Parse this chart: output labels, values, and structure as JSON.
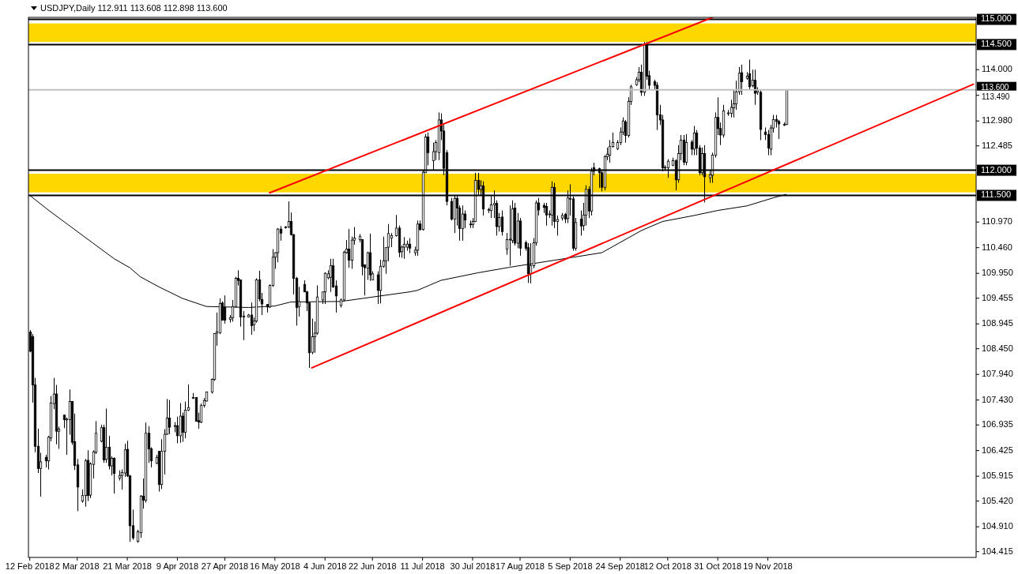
{
  "chart_data": {
    "type": "candlestick",
    "title": "USDJPY,Daily 112.911 113.608 112.898 113.600",
    "color": "#000000",
    "x": [
      "2018-02-12",
      "2018-02-13",
      "2018-02-14",
      "2018-02-15",
      "2018-02-16",
      "2018-02-18",
      "2018-02-19",
      "2018-02-20",
      "2018-02-21",
      "2018-02-22",
      "2018-02-23",
      "2018-02-25",
      "2018-02-26",
      "2018-02-27",
      "2018-02-28",
      "2018-03-01",
      "2018-03-02",
      "2018-03-04",
      "2018-03-05",
      "2018-03-06",
      "2018-03-07",
      "2018-03-08",
      "2018-03-09",
      "2018-03-11",
      "2018-03-12",
      "2018-03-13",
      "2018-03-14",
      "2018-03-15",
      "2018-03-16",
      "2018-03-18",
      "2018-03-19",
      "2018-03-20",
      "2018-03-21",
      "2018-03-22",
      "2018-03-23",
      "2018-03-25",
      "2018-03-26",
      "2018-03-27",
      "2018-03-28",
      "2018-03-29",
      "2018-03-30",
      "2018-04-01",
      "2018-04-02",
      "2018-04-03",
      "2018-04-04",
      "2018-04-05",
      "2018-04-06",
      "2018-04-08",
      "2018-04-09",
      "2018-04-10",
      "2018-04-11",
      "2018-04-12",
      "2018-04-13",
      "2018-04-15",
      "2018-04-16",
      "2018-04-17",
      "2018-04-18",
      "2018-04-19",
      "2018-04-20",
      "2018-04-22",
      "2018-04-23",
      "2018-04-24",
      "2018-04-25",
      "2018-04-26",
      "2018-04-27",
      "2018-04-29",
      "2018-04-30",
      "2018-05-01",
      "2018-05-02",
      "2018-05-03",
      "2018-05-04",
      "2018-05-06",
      "2018-05-07",
      "2018-05-08",
      "2018-05-09",
      "2018-05-10",
      "2018-05-11",
      "2018-05-13",
      "2018-05-14",
      "2018-05-15",
      "2018-05-16",
      "2018-05-17",
      "2018-05-18",
      "2018-05-20",
      "2018-05-21",
      "2018-05-22",
      "2018-05-23",
      "2018-05-24",
      "2018-05-25",
      "2018-05-27",
      "2018-05-28",
      "2018-05-29",
      "2018-05-30",
      "2018-05-31",
      "2018-06-01",
      "2018-06-03",
      "2018-06-04",
      "2018-06-05",
      "2018-06-06",
      "2018-06-07",
      "2018-06-08",
      "2018-06-10",
      "2018-06-11",
      "2018-06-12",
      "2018-06-13",
      "2018-06-14",
      "2018-06-15",
      "2018-06-17",
      "2018-06-18",
      "2018-06-19",
      "2018-06-20",
      "2018-06-21",
      "2018-06-22",
      "2018-06-24",
      "2018-06-25",
      "2018-06-26",
      "2018-06-27",
      "2018-06-28",
      "2018-06-29",
      "2018-07-01",
      "2018-07-02",
      "2018-07-03",
      "2018-07-04",
      "2018-07-05",
      "2018-07-06",
      "2018-07-08",
      "2018-07-09",
      "2018-07-10",
      "2018-07-11",
      "2018-07-12",
      "2018-07-13",
      "2018-07-15",
      "2018-07-16",
      "2018-07-17",
      "2018-07-18",
      "2018-07-19",
      "2018-07-20",
      "2018-07-22",
      "2018-07-23",
      "2018-07-24",
      "2018-07-25",
      "2018-07-26",
      "2018-07-27",
      "2018-07-29",
      "2018-07-30",
      "2018-07-31",
      "2018-08-01",
      "2018-08-02",
      "2018-08-03",
      "2018-08-05",
      "2018-08-06",
      "2018-08-07",
      "2018-08-08",
      "2018-08-09",
      "2018-08-10",
      "2018-08-12",
      "2018-08-13",
      "2018-08-14",
      "2018-08-15",
      "2018-08-16",
      "2018-08-17",
      "2018-08-19",
      "2018-08-20",
      "2018-08-21",
      "2018-08-22",
      "2018-08-23",
      "2018-08-24",
      "2018-08-26",
      "2018-08-27",
      "2018-08-28",
      "2018-08-29",
      "2018-08-30",
      "2018-08-31",
      "2018-09-02",
      "2018-09-03",
      "2018-09-04",
      "2018-09-05",
      "2018-09-06",
      "2018-09-07",
      "2018-09-09",
      "2018-09-10",
      "2018-09-11",
      "2018-09-12",
      "2018-09-13",
      "2018-09-14",
      "2018-09-16",
      "2018-09-17",
      "2018-09-18",
      "2018-09-19",
      "2018-09-20",
      "2018-09-21",
      "2018-09-23",
      "2018-09-24",
      "2018-09-25",
      "2018-09-26",
      "2018-09-27",
      "2018-09-28",
      "2018-09-30",
      "2018-10-01",
      "2018-10-02",
      "2018-10-03",
      "2018-10-04",
      "2018-10-05",
      "2018-10-07",
      "2018-10-08",
      "2018-10-09",
      "2018-10-10",
      "2018-10-11",
      "2018-10-12",
      "2018-10-14",
      "2018-10-15",
      "2018-10-16",
      "2018-10-17",
      "2018-10-18",
      "2018-10-19",
      "2018-10-21",
      "2018-10-22",
      "2018-10-23",
      "2018-10-24",
      "2018-10-25",
      "2018-10-26",
      "2018-10-28",
      "2018-10-29",
      "2018-10-30",
      "2018-10-31",
      "2018-11-01",
      "2018-11-02",
      "2018-11-04",
      "2018-11-05",
      "2018-11-06",
      "2018-11-07",
      "2018-11-08",
      "2018-11-09",
      "2018-11-11",
      "2018-11-12",
      "2018-11-13",
      "2018-11-14",
      "2018-11-15",
      "2018-11-16",
      "2018-11-18",
      "2018-11-19",
      "2018-11-20",
      "2018-11-21",
      "2018-11-22",
      "2018-11-23",
      "2018-11-25",
      "2018-11-26"
    ],
    "ohlc": [
      [
        108.78,
        108.82,
        108.38,
        108.4
      ],
      [
        108.69,
        108.74,
        107.38,
        107.73
      ],
      [
        107.73,
        107.87,
        106.39,
        106.51
      ],
      [
        106.51,
        106.86,
        105.98,
        106.07
      ],
      [
        106.07,
        106.38,
        105.51,
        106.2
      ],
      [
        106.29,
        106.34,
        106.09,
        106.22
      ],
      [
        106.22,
        106.72,
        106.05,
        106.69
      ],
      [
        106.68,
        107.51,
        106.61,
        107.37
      ],
      [
        107.36,
        107.87,
        107.25,
        107.55
      ],
      [
        107.55,
        107.73,
        106.55,
        106.81
      ],
      [
        106.81,
        106.9,
        106.46,
        106.85
      ],
      [
        107.13,
        107.14,
        106.87,
        107.04
      ],
      [
        107.05,
        107.08,
        106.34,
        107.05
      ],
      [
        107.04,
        107.64,
        106.74,
        107.4
      ],
      [
        107.4,
        107.41,
        106.54,
        106.59
      ],
      [
        106.6,
        107.16,
        106.04,
        106.13
      ],
      [
        106.14,
        106.26,
        105.22,
        105.7
      ],
      [
        105.42,
        105.65,
        105.39,
        105.53
      ],
      [
        105.53,
        106.26,
        105.31,
        106.22
      ],
      [
        106.23,
        106.43,
        105.42,
        105.53
      ],
      [
        105.54,
        106.19,
        105.48,
        106.16
      ],
      [
        106.15,
        106.43,
        105.87,
        106.4
      ],
      [
        106.39,
        107.01,
        106.36,
        106.77
      ],
      [
        106.61,
        106.94,
        106.59,
        106.88
      ],
      [
        106.88,
        106.94,
        106.18,
        106.24
      ],
      [
        106.25,
        107.26,
        106.18,
        106.49
      ],
      [
        106.49,
        106.72,
        106.05,
        106.12
      ],
      [
        106.12,
        106.31,
        105.93,
        106.27
      ],
      [
        106.27,
        106.29,
        105.57,
        105.97
      ],
      [
        105.88,
        106.03,
        105.83,
        105.93
      ],
      [
        105.93,
        106.05,
        105.65,
        105.99
      ],
      [
        105.98,
        106.56,
        105.9,
        106.44
      ],
      [
        106.45,
        106.62,
        105.9,
        105.92
      ],
      [
        105.92,
        105.94,
        104.61,
        104.93
      ],
      [
        104.93,
        105.25,
        104.65,
        104.69
      ],
      [
        104.62,
        104.85,
        104.59,
        104.81
      ],
      [
        104.79,
        105.54,
        104.69,
        105.52
      ],
      [
        105.52,
        105.87,
        105.27,
        105.44
      ],
      [
        105.44,
        106.98,
        105.39,
        106.77
      ],
      [
        106.77,
        106.91,
        106.18,
        106.46
      ],
      [
        106.46,
        106.49,
        106.09,
        106.22
      ],
      [
        106.17,
        106.34,
        106.16,
        106.29
      ],
      [
        106.41,
        106.41,
        105.61,
        105.75
      ],
      [
        105.75,
        106.65,
        105.66,
        106.41
      ],
      [
        106.41,
        106.85,
        105.95,
        106.75
      ],
      [
        106.75,
        107.45,
        106.74,
        107.07
      ],
      [
        107.07,
        107.43,
        106.75,
        106.89
      ],
      [
        106.92,
        106.99,
        106.79,
        106.92
      ],
      [
        106.92,
        107.1,
        106.57,
        106.72
      ],
      [
        106.72,
        107.37,
        106.58,
        107.11
      ],
      [
        107.11,
        107.18,
        106.6,
        106.79
      ],
      [
        106.79,
        107.4,
        106.67,
        107.23
      ],
      [
        107.23,
        107.74,
        107.21,
        107.28
      ],
      [
        107.48,
        107.57,
        107.45,
        107.48
      ],
      [
        107.48,
        107.49,
        107.0,
        107.01
      ],
      [
        107.02,
        107.18,
        106.86,
        106.99
      ],
      [
        106.99,
        107.36,
        106.97,
        107.32
      ],
      [
        107.32,
        107.47,
        107.28,
        107.42
      ],
      [
        107.41,
        107.6,
        107.4,
        107.59
      ],
      [
        107.59,
        107.86,
        107.56,
        107.84
      ],
      [
        107.84,
        108.76,
        107.81,
        108.75
      ],
      [
        108.76,
        109.17,
        108.51,
        108.79
      ],
      [
        108.77,
        109.45,
        108.74,
        109.35
      ],
      [
        109.36,
        109.39,
        109.02,
        109.02
      ],
      [
        109.27,
        109.51,
        108.95,
        109.02
      ],
      [
        109.03,
        109.12,
        108.97,
        109.07
      ],
      [
        109.07,
        109.42,
        108.99,
        109.29
      ],
      [
        109.29,
        109.88,
        109.27,
        109.85
      ],
      [
        109.85,
        110.01,
        109.71,
        109.81
      ],
      [
        109.82,
        109.82,
        108.89,
        109.08
      ],
      [
        109.08,
        109.2,
        108.62,
        109.1
      ],
      [
        109.08,
        109.14,
        109.07,
        109.12
      ],
      [
        109.12,
        109.37,
        108.73,
        108.91
      ],
      [
        108.93,
        109.07,
        108.8,
        109.0
      ],
      [
        109.0,
        109.85,
        108.97,
        109.82
      ],
      [
        109.82,
        110.0,
        109.39,
        109.44
      ],
      [
        109.43,
        109.56,
        109.12,
        109.34
      ],
      [
        109.33,
        109.34,
        109.17,
        109.28
      ],
      [
        109.28,
        109.73,
        109.26,
        109.71
      ],
      [
        109.71,
        110.43,
        109.68,
        110.27
      ],
      [
        110.27,
        110.37,
        110.04,
        110.36
      ],
      [
        110.36,
        110.85,
        110.17,
        110.83
      ],
      [
        110.83,
        110.89,
        110.6,
        110.75
      ],
      [
        110.87,
        110.89,
        110.84,
        110.87
      ],
      [
        110.87,
        111.38,
        110.85,
        110.98
      ],
      [
        110.98,
        111.16,
        110.7,
        110.72
      ],
      [
        110.72,
        110.73,
        109.53,
        109.85
      ],
      [
        109.85,
        109.88,
        108.91,
        109.27
      ],
      [
        109.29,
        109.68,
        109.09,
        109.39
      ],
      [
        109.73,
        109.81,
        109.58,
        109.58
      ],
      [
        109.58,
        109.6,
        109.2,
        109.36
      ],
      [
        109.36,
        109.37,
        108.07,
        108.37
      ],
      [
        108.38,
        109.05,
        108.34,
        108.69
      ],
      [
        108.69,
        108.99,
        108.37,
        108.76
      ],
      [
        108.76,
        109.71,
        108.73,
        109.48
      ],
      [
        109.42,
        109.58,
        109.34,
        109.58
      ],
      [
        109.58,
        109.97,
        109.34,
        109.95
      ],
      [
        109.86,
        110.01,
        109.83,
        109.94
      ],
      [
        109.87,
        110.24,
        109.58,
        110.1
      ],
      [
        110.1,
        110.24,
        109.66,
        109.68
      ],
      [
        109.7,
        109.81,
        109.17,
        109.5
      ],
      [
        109.31,
        109.45,
        109.27,
        109.42
      ],
      [
        109.42,
        110.4,
        109.4,
        110.37
      ],
      [
        110.36,
        110.61,
        110.34,
        110.43
      ],
      [
        110.43,
        110.83,
        110.06,
        110.21
      ],
      [
        110.21,
        110.68,
        110.04,
        110.61
      ],
      [
        110.61,
        110.87,
        110.52,
        110.65
      ],
      [
        110.62,
        110.73,
        110.57,
        110.68
      ],
      [
        110.62,
        110.63,
        109.91,
        110.09
      ],
      [
        110.12,
        110.12,
        109.51,
        110.06
      ],
      [
        110.05,
        110.38,
        109.82,
        110.36
      ],
      [
        110.36,
        110.74,
        109.8,
        109.92
      ],
      [
        109.82,
        109.99,
        109.81,
        109.94
      ],
      [
        109.92,
        109.99,
        109.34,
        109.61
      ],
      [
        109.61,
        110.22,
        109.35,
        110.09
      ],
      [
        110.09,
        110.68,
        110.06,
        110.2
      ],
      [
        110.2,
        110.47,
        109.94,
        110.46
      ],
      [
        110.47,
        110.93,
        110.19,
        110.74
      ],
      [
        110.65,
        110.75,
        110.47,
        110.7
      ],
      [
        110.7,
        111.11,
        110.68,
        110.85
      ],
      [
        110.85,
        110.9,
        110.27,
        110.37
      ],
      [
        110.38,
        110.5,
        110.26,
        110.47
      ],
      [
        110.47,
        110.67,
        110.24,
        110.53
      ],
      [
        110.47,
        110.6,
        110.4,
        110.53
      ],
      [
        110.53,
        110.65,
        110.35,
        110.45
      ],
      [
        110.36,
        110.48,
        110.3,
        110.41
      ],
      [
        110.41,
        111.0,
        110.3,
        110.93
      ],
      [
        110.93,
        111.0,
        110.8,
        110.82
      ],
      [
        110.82,
        112.0,
        110.8,
        111.96
      ],
      [
        111.95,
        112.72,
        111.95,
        112.66
      ],
      [
        112.66,
        112.75,
        112.1,
        112.35
      ],
      [
        112.19,
        112.55,
        112.0,
        112.37
      ],
      [
        112.37,
        112.6,
        112.2,
        112.55
      ],
      [
        112.35,
        113.15,
        112.2,
        113.0
      ],
      [
        113.0,
        113.13,
        112.6,
        112.78
      ],
      [
        112.78,
        112.9,
        111.9,
        112.04
      ],
      [
        112.35,
        112.4,
        111.3,
        111.38
      ],
      [
        111.38,
        111.45,
        111.0,
        111.03
      ],
      [
        111.03,
        111.5,
        110.75,
        111.44
      ],
      [
        111.44,
        111.5,
        110.9,
        111.25
      ],
      [
        111.25,
        111.3,
        110.6,
        110.84
      ],
      [
        110.84,
        111.3,
        110.6,
        111.13
      ],
      [
        111.13,
        111.2,
        110.85,
        111.01
      ],
      [
        110.92,
        111.0,
        110.85,
        110.93
      ],
      [
        110.92,
        111.05,
        110.85,
        110.98
      ],
      [
        110.98,
        111.95,
        110.97,
        111.8
      ],
      [
        111.8,
        111.95,
        111.5,
        111.62
      ],
      [
        111.62,
        111.8,
        111.5,
        111.69
      ],
      [
        111.69,
        111.78,
        111.1,
        111.23
      ],
      [
        111.21,
        111.25,
        111.15,
        111.22
      ],
      [
        111.2,
        111.5,
        111.05,
        111.31
      ],
      [
        111.31,
        111.6,
        111.05,
        111.34
      ],
      [
        111.34,
        111.4,
        110.7,
        110.88
      ],
      [
        110.88,
        111.15,
        110.78,
        111.06
      ],
      [
        111.07,
        111.2,
        110.7,
        110.78
      ],
      [
        110.43,
        110.75,
        110.32,
        110.62
      ],
      [
        110.63,
        111.3,
        110.1,
        110.63
      ],
      [
        110.6,
        111.4,
        110.55,
        111.23
      ],
      [
        111.25,
        111.35,
        110.5,
        110.55
      ],
      [
        110.55,
        111.15,
        110.45,
        110.99
      ],
      [
        110.99,
        111.05,
        110.3,
        110.45
      ],
      [
        110.56,
        110.6,
        110.4,
        110.45
      ],
      [
        110.46,
        110.55,
        109.76,
        109.94
      ],
      [
        109.94,
        110.55,
        109.75,
        110.1
      ],
      [
        110.1,
        110.65,
        110.05,
        110.56
      ],
      [
        110.56,
        111.4,
        110.5,
        111.35
      ],
      [
        111.35,
        111.45,
        111.1,
        111.21
      ],
      [
        111.3,
        111.35,
        111.15,
        111.26
      ],
      [
        111.28,
        111.35,
        110.9,
        111.11
      ],
      [
        111.13,
        111.2,
        111.05,
        111.13
      ],
      [
        111.11,
        111.78,
        110.9,
        111.66
      ],
      [
        111.66,
        111.75,
        110.85,
        110.98
      ],
      [
        110.98,
        111.1,
        110.7,
        111.02
      ],
      [
        111.05,
        111.15,
        111.0,
        111.1
      ],
      [
        111.12,
        111.15,
        110.95,
        111.03
      ],
      [
        111.04,
        111.6,
        110.95,
        111.45
      ],
      [
        111.44,
        111.72,
        111.1,
        111.44
      ],
      [
        111.43,
        111.48,
        110.4,
        110.45
      ],
      [
        110.45,
        111.05,
        110.4,
        110.96
      ],
      [
        111.03,
        111.2,
        110.7,
        110.89
      ],
      [
        110.9,
        111.35,
        110.8,
        111.11
      ],
      [
        111.11,
        111.7,
        110.9,
        111.62
      ],
      [
        111.62,
        111.68,
        111.05,
        111.19
      ],
      [
        111.19,
        112.05,
        111.1,
        111.98
      ],
      [
        112.05,
        112.15,
        111.9,
        111.98
      ],
      [
        112.03,
        112.05,
        111.65,
        111.95
      ],
      [
        111.95,
        112.0,
        111.58,
        111.66
      ],
      [
        111.66,
        112.3,
        111.6,
        112.27
      ],
      [
        112.27,
        112.45,
        112.2,
        112.32
      ],
      [
        112.3,
        112.6,
        112.15,
        112.47
      ],
      [
        112.47,
        112.75,
        112.45,
        112.55
      ],
      [
        112.43,
        112.6,
        112.4,
        112.55
      ],
      [
        112.55,
        112.85,
        112.5,
        112.76
      ],
      [
        112.76,
        113.05,
        112.7,
        112.98
      ],
      [
        112.96,
        113.0,
        112.55,
        112.69
      ],
      [
        112.69,
        113.45,
        112.65,
        113.37
      ],
      [
        113.37,
        113.7,
        113.3,
        113.66
      ],
      [
        113.7,
        113.85,
        113.68,
        113.8
      ],
      [
        113.8,
        114.05,
        113.75,
        113.95
      ],
      [
        113.95,
        114.1,
        113.48,
        113.55
      ],
      [
        113.55,
        114.55,
        113.48,
        114.5
      ],
      [
        114.5,
        114.55,
        113.8,
        113.87
      ],
      [
        113.88,
        113.98,
        113.6,
        113.69
      ],
      [
        113.76,
        113.8,
        113.6,
        113.69
      ],
      [
        113.69,
        113.75,
        112.8,
        113.1
      ],
      [
        113.1,
        113.3,
        112.9,
        113.0
      ],
      [
        113.0,
        113.1,
        111.98,
        112.05
      ],
      [
        112.06,
        112.1,
        112.0,
        112.06
      ],
      [
        112.05,
        112.22,
        111.85,
        112.18
      ],
      [
        112.1,
        112.25,
        112.08,
        112.19
      ],
      [
        112.19,
        112.22,
        111.6,
        111.81
      ],
      [
        111.81,
        112.5,
        111.75,
        112.33
      ],
      [
        112.33,
        112.7,
        112.2,
        112.6
      ],
      [
        112.6,
        112.7,
        112.1,
        112.16
      ],
      [
        112.16,
        112.72,
        112.1,
        112.55
      ],
      [
        112.56,
        112.6,
        112.3,
        112.42
      ],
      [
        112.42,
        112.88,
        112.3,
        112.74
      ],
      [
        112.74,
        112.8,
        112.3,
        112.44
      ],
      [
        112.44,
        112.5,
        111.9,
        111.95
      ],
      [
        111.95,
        112.45,
        111.9,
        112.33
      ],
      [
        112.33,
        112.5,
        111.36,
        111.87
      ],
      [
        111.85,
        112.0,
        111.75,
        111.91
      ],
      [
        111.9,
        112.35,
        111.75,
        112.3
      ],
      [
        112.3,
        113.15,
        112.25,
        113.05
      ],
      [
        113.05,
        113.45,
        112.7,
        112.83
      ],
      [
        112.83,
        112.95,
        112.5,
        112.7
      ],
      [
        112.7,
        113.3,
        112.65,
        113.18
      ],
      [
        113.14,
        113.2,
        113.08,
        113.14
      ],
      [
        113.13,
        113.4,
        113.05,
        113.25
      ],
      [
        113.24,
        113.6,
        113.05,
        113.32
      ],
      [
        113.32,
        113.78,
        113.2,
        113.56
      ],
      [
        113.56,
        114.05,
        113.5,
        113.93
      ],
      [
        113.94,
        114.1,
        113.5,
        113.76
      ],
      [
        113.83,
        113.95,
        113.8,
        113.87
      ],
      [
        113.92,
        114.2,
        113.6,
        113.66
      ],
      [
        113.68,
        114.0,
        113.65,
        113.79
      ],
      [
        113.79,
        114.0,
        113.3,
        113.53
      ],
      [
        113.55,
        113.65,
        113.5,
        113.58
      ],
      [
        113.55,
        113.6,
        112.6,
        112.81
      ],
      [
        112.76,
        112.85,
        112.6,
        112.71
      ],
      [
        112.71,
        112.8,
        112.3,
        112.44
      ],
      [
        112.42,
        112.9,
        112.3,
        112.84
      ],
      [
        112.84,
        113.1,
        112.75,
        113.01
      ],
      [
        113.01,
        113.1,
        112.85,
        112.97
      ],
      [
        112.97,
        113.0,
        112.62,
        112.92
      ],
      [
        112.9,
        112.95,
        112.88,
        112.91
      ],
      [
        112.911,
        113.608,
        112.898,
        113.6
      ]
    ],
    "series": [
      {
        "type": "line",
        "color": "#000000",
        "x": [
          "2018-02-12",
          "2018-02-19",
          "2018-02-28",
          "2018-03-08",
          "2018-03-16",
          "2018-03-22",
          "2018-03-26",
          "2018-04-02",
          "2018-04-11",
          "2018-04-20",
          "2018-05-06",
          "2018-05-16",
          "2018-05-22",
          "2018-06-10",
          "2018-06-25",
          "2018-07-06",
          "2018-07-09",
          "2018-07-18",
          "2018-08-01",
          "2018-08-13",
          "2018-08-30",
          "2018-09-17",
          "2018-10-02",
          "2018-10-10",
          "2018-10-22",
          "2018-10-31",
          "2018-11-11",
          "2018-11-21",
          "2018-11-26"
        ],
        "values": [
          111.5,
          111.21,
          110.86,
          110.55,
          110.24,
          110.06,
          109.88,
          109.68,
          109.45,
          109.29,
          109.27,
          109.3,
          109.38,
          109.39,
          109.5,
          109.58,
          109.61,
          109.81,
          109.96,
          110.07,
          110.21,
          110.36,
          110.8,
          110.98,
          111.1,
          111.2,
          111.29,
          111.45,
          111.52
        ]
      },
      {
        "type": "line",
        "color": "#ff0000",
        "x": [
          "2018-05-14",
          "2018-10-29"
        ],
        "values": [
          111.55,
          115.04
        ]
      },
      {
        "type": "line",
        "color": "#ff0000",
        "x": [
          "2018-05-30",
          "2019-02-05"
        ],
        "values": [
          108.07,
          113.71
        ]
      }
    ],
    "xlim": [
      "2018-02-11T12:00",
      "2019-02-06"
    ],
    "xticks": [
      {
        "value": "2018-02-12",
        "label": "12 Feb 2018"
      },
      {
        "value": "2018-03-02",
        "label": "2 Mar 2018"
      },
      {
        "value": "2018-03-21",
        "label": "21 Mar 2018"
      },
      {
        "value": "2018-04-09",
        "label": "9 Apr 2018"
      },
      {
        "value": "2018-04-27",
        "label": "27 Apr 2018"
      },
      {
        "value": "2018-05-16",
        "label": "16 May 2018"
      },
      {
        "value": "2018-06-04",
        "label": "4 Jun 2018"
      },
      {
        "value": "2018-06-22",
        "label": "22 Jun 2018"
      },
      {
        "value": "2018-07-11",
        "label": "11 Jul 2018"
      },
      {
        "value": "2018-07-30",
        "label": "30 Jul 2018"
      },
      {
        "value": "2018-08-17",
        "label": "17 Aug 2018"
      },
      {
        "value": "2018-09-05",
        "label": "5 Sep 2018"
      },
      {
        "value": "2018-09-24",
        "label": "24 Sep 2018"
      },
      {
        "value": "2018-10-12",
        "label": "12 Oct 2018"
      },
      {
        "value": "2018-10-31",
        "label": "31 Oct 2018"
      },
      {
        "value": "2018-11-19",
        "label": "19 Nov 2018"
      }
    ],
    "ylim": [
      104.3,
      115.04
    ],
    "yticks": [
      {
        "value": 114,
        "label": "114.000"
      },
      {
        "value": 113.49,
        "label": "113.490"
      },
      {
        "value": 112.98,
        "label": "112.980"
      },
      {
        "value": 112.485,
        "label": "112.485"
      },
      {
        "value": 110.97,
        "label": "110.970"
      },
      {
        "value": 110.46,
        "label": "110.460"
      },
      {
        "value": 109.95,
        "label": "109.950"
      },
      {
        "value": 109.455,
        "label": "109.455"
      },
      {
        "value": 108.945,
        "label": "108.945"
      },
      {
        "value": 108.45,
        "label": "108.450"
      },
      {
        "value": 107.94,
        "label": "107.940"
      },
      {
        "value": 107.43,
        "label": "107.430"
      },
      {
        "value": 106.935,
        "label": "106.935"
      },
      {
        "value": 106.425,
        "label": "106.425"
      },
      {
        "value": 105.915,
        "label": "105.915"
      },
      {
        "value": 105.42,
        "label": "105.420"
      },
      {
        "value": 104.91,
        "label": "104.910"
      },
      {
        "value": 104.415,
        "label": "104.415"
      }
    ],
    "ref_lines": [
      {
        "axis": "y",
        "value": 115,
        "label": "115.000",
        "color": "#000000"
      },
      {
        "axis": "y",
        "value": 114.5,
        "label": "114.500",
        "color": "#000000"
      },
      {
        "axis": "y",
        "value": 113.6,
        "label": "113.600",
        "color": "#c0c0c0"
      },
      {
        "axis": "y",
        "value": 112,
        "label": "112.000",
        "color": "#000000"
      },
      {
        "axis": "y",
        "value": 111.5,
        "label": "111.500",
        "color": "#000000"
      }
    ],
    "bands": [
      {
        "axis": "y",
        "from": 114.55,
        "to": 114.92,
        "color": "#ffd700"
      },
      {
        "axis": "y",
        "from": 111.56,
        "to": 111.93,
        "color": "#ffd700"
      }
    ]
  }
}
